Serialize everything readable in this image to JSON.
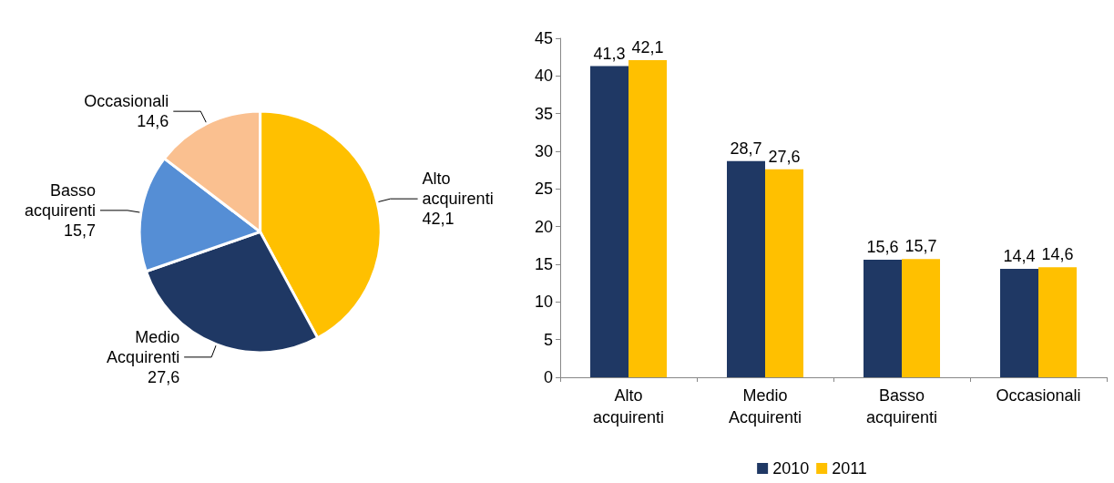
{
  "chart_data": [
    {
      "type": "pie",
      "categories": [
        "Alto acquirenti",
        "Medio Acquirenti",
        "Basso acquirenti",
        "Occasionali"
      ],
      "values": [
        42.1,
        27.6,
        15.7,
        14.6
      ],
      "colors": [
        "#ffc000",
        "#1f3864",
        "#558ed5",
        "#fac090"
      ],
      "value_labels": [
        "42,1",
        "27,6",
        "15,7",
        "14,6"
      ],
      "legend": false
    },
    {
      "type": "bar",
      "categories": [
        "Alto acquirenti",
        "Medio Acquirenti",
        "Basso acquirenti",
        "Occasionali"
      ],
      "series": [
        {
          "name": "2010",
          "color": "#1f3864",
          "values": [
            41.3,
            28.7,
            15.6,
            14.4
          ],
          "value_labels": [
            "41,3",
            "28,7",
            "15,6",
            "14,4"
          ]
        },
        {
          "name": "2011",
          "color": "#ffc000",
          "values": [
            42.1,
            27.6,
            15.7,
            14.6
          ],
          "value_labels": [
            "42,1",
            "27,6",
            "15,7",
            "14,6"
          ]
        }
      ],
      "ylim": [
        0,
        45
      ],
      "yticks": [
        0,
        5,
        10,
        15,
        20,
        25,
        30,
        35,
        40,
        45
      ],
      "grid": false,
      "legend": "bottom"
    }
  ]
}
